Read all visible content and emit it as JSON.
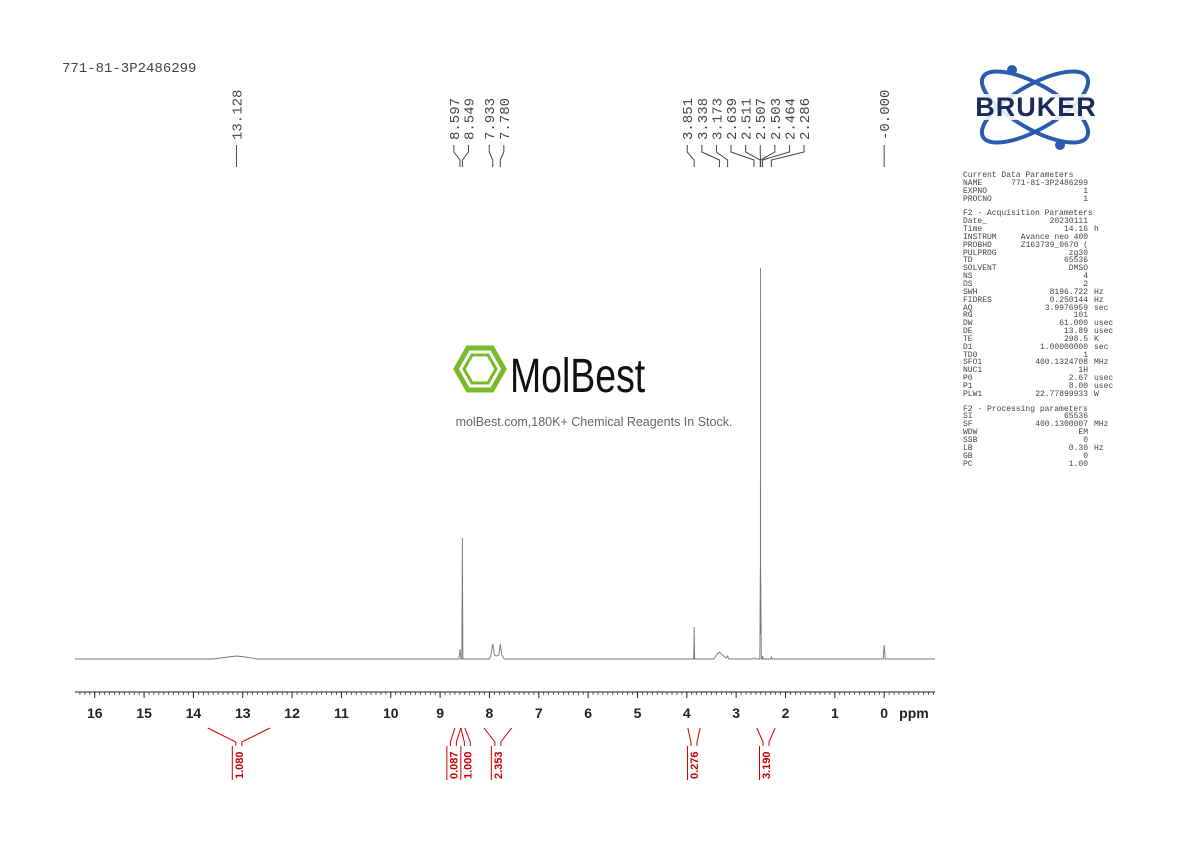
{
  "sample_name": "771-81-3P2486299",
  "logo": "BRUKER",
  "watermark": {
    "brand": "MolBest",
    "tagline": "molBest.com,180K+ Chemical Reagents In Stock."
  },
  "chart_data": {
    "type": "nmr",
    "x_label": "ppm",
    "xlim": [
      16.4,
      -1.03
    ],
    "xticks": [
      16,
      15,
      14,
      13,
      12,
      11,
      10,
      9,
      8,
      7,
      6,
      5,
      4,
      3,
      2,
      1,
      0
    ],
    "xminor_step": 0.1,
    "ylim": [
      0,
      400
    ],
    "series": [
      {
        "color": "#777777",
        "x": [
          16.4,
          13.6,
          13.3,
          13.128,
          12.95,
          12.7,
          8.62,
          8.597,
          8.58,
          8.56,
          8.549,
          8.538,
          8.52,
          8.0,
          7.97,
          7.933,
          7.9,
          7.86,
          7.81,
          7.78,
          7.75,
          7.7,
          3.9,
          3.86,
          3.851,
          3.842,
          3.45,
          3.4,
          3.338,
          3.28,
          3.2,
          3.173,
          3.15,
          2.68,
          2.639,
          2.6,
          2.52,
          2.511,
          2.509,
          2.507,
          2.505,
          2.503,
          2.49,
          2.47,
          2.464,
          2.455,
          2.3,
          2.286,
          2.27,
          0.02,
          0.0,
          -0.02,
          -1.03
        ],
        "values": [
          0,
          0,
          2,
          3,
          2,
          0,
          0,
          10,
          0,
          0,
          121,
          0,
          0,
          0,
          4,
          15,
          4,
          3,
          4,
          15,
          4,
          0,
          0,
          0,
          32,
          0,
          0,
          4,
          7,
          4,
          1,
          3,
          0,
          0,
          1,
          0,
          0,
          90,
          25,
          391,
          25,
          90,
          0,
          0,
          3,
          0,
          0,
          2,
          0,
          0,
          14,
          0,
          0
        ]
      }
    ],
    "peaks": [
      {
        "value": 13.128,
        "label": "13.128"
      },
      {
        "value": 8.597,
        "label": "8.597"
      },
      {
        "value": 8.549,
        "label": "8.549"
      },
      {
        "value": 7.933,
        "label": "7.933"
      },
      {
        "value": 7.78,
        "label": "7.780"
      },
      {
        "value": 3.851,
        "label": "3.851"
      },
      {
        "value": 3.338,
        "label": "3.338"
      },
      {
        "value": 3.173,
        "label": "3.173"
      },
      {
        "value": 2.639,
        "label": "2.639"
      },
      {
        "value": 2.511,
        "label": "2.511"
      },
      {
        "value": 2.507,
        "label": "2.507"
      },
      {
        "value": 2.503,
        "label": "2.503"
      },
      {
        "value": 2.464,
        "label": "2.464"
      },
      {
        "value": 2.286,
        "label": "2.286"
      },
      {
        "value": 0,
        "label": "-0.000"
      }
    ],
    "integral_color": "#cc0000",
    "integrals": [
      {
        "range": [
          13.71,
          12.45
        ],
        "value": 1.08,
        "label": "1.080"
      },
      {
        "range": [
          8.7,
          8.58
        ],
        "value": 0.087,
        "label": "0.087"
      },
      {
        "range": [
          8.58,
          8.5
        ],
        "value": 1,
        "label": "1.000"
      },
      {
        "range": [
          8.11,
          7.55
        ],
        "value": 2.353,
        "label": "2.353"
      },
      {
        "range": [
          3.98,
          3.73
        ],
        "value": 0.276,
        "label": "0.276"
      },
      {
        "range": [
          2.58,
          2.21
        ],
        "value": 3.19,
        "label": "3.190"
      }
    ]
  },
  "parameters": [
    {
      "title": "Current Data Parameters",
      "rows": [
        [
          "NAME",
          "771-81-3P2486299"
        ],
        [
          "EXPNO",
          "1"
        ],
        [
          "PROCNO",
          "1"
        ]
      ]
    },
    {
      "title": "F2 - Acquisition Parameters",
      "rows": [
        [
          "Date_",
          "20230111"
        ],
        [
          "Time",
          "14.16",
          "h"
        ],
        [
          "INSTRUM",
          "Avance neo 400"
        ],
        [
          "PROBHD",
          "Z163739_0670 ("
        ],
        [
          "PULPROG",
          "zg30"
        ],
        [
          "TD",
          "65536"
        ],
        [
          "SOLVENT",
          "DMSO"
        ],
        [
          "NS",
          "4"
        ],
        [
          "DS",
          "2"
        ],
        [
          "SWH",
          "8196.722",
          "Hz"
        ],
        [
          "FIDRES",
          "0.250144",
          "Hz"
        ],
        [
          "AQ",
          "3.9976959",
          "sec"
        ],
        [
          "RG",
          "101"
        ],
        [
          "DW",
          "61.000",
          "usec"
        ],
        [
          "DE",
          "13.89",
          "usec"
        ],
        [
          "TE",
          "298.5",
          "K"
        ],
        [
          "D1",
          "1.00000000",
          "sec"
        ],
        [
          "TD0",
          "1"
        ],
        [
          "SFO1",
          "400.1324708",
          "MHz"
        ],
        [
          "NUC1",
          "1H"
        ],
        [
          "P0",
          "2.67",
          "usec"
        ],
        [
          "P1",
          "8.00",
          "usec"
        ],
        [
          "PLW1",
          "22.77899933",
          "W"
        ]
      ]
    },
    {
      "title": "F2 - Processing parameters",
      "rows": [
        [
          "SI",
          "65536"
        ],
        [
          "SF",
          "400.1300007",
          "MHz"
        ],
        [
          "WDW",
          "EM"
        ],
        [
          "SSB",
          "0"
        ],
        [
          "LB",
          "0.30",
          "Hz"
        ],
        [
          "GB",
          "0"
        ],
        [
          "PC",
          "1.00"
        ]
      ]
    }
  ]
}
